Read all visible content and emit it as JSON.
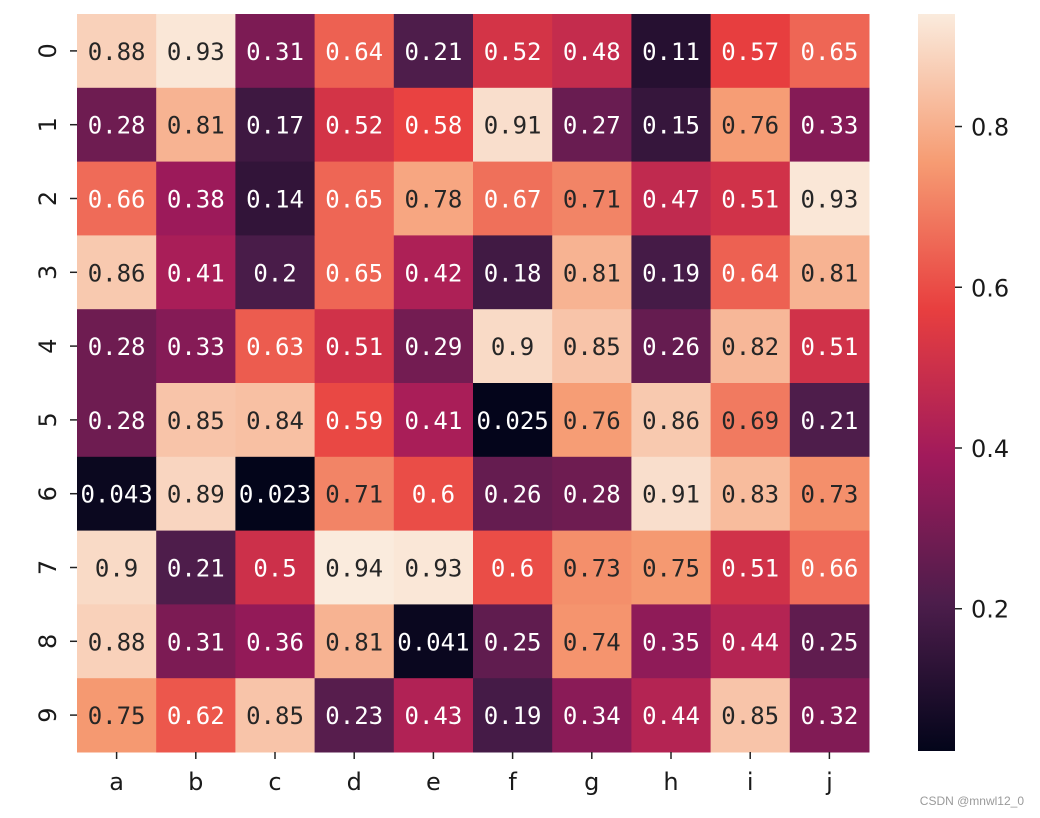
{
  "chart_data": {
    "type": "heatmap",
    "title": "",
    "xlabel": "",
    "ylabel": "",
    "x_categories": [
      "a",
      "b",
      "c",
      "d",
      "e",
      "f",
      "g",
      "h",
      "i",
      "j"
    ],
    "y_categories": [
      "0",
      "1",
      "2",
      "3",
      "4",
      "5",
      "6",
      "7",
      "8",
      "9"
    ],
    "values": [
      [
        0.88,
        0.93,
        0.31,
        0.64,
        0.21,
        0.52,
        0.48,
        0.11,
        0.57,
        0.65
      ],
      [
        0.28,
        0.81,
        0.17,
        0.52,
        0.58,
        0.91,
        0.27,
        0.15,
        0.76,
        0.33
      ],
      [
        0.66,
        0.38,
        0.14,
        0.65,
        0.78,
        0.67,
        0.71,
        0.47,
        0.51,
        0.93
      ],
      [
        0.86,
        0.41,
        0.2,
        0.65,
        0.42,
        0.18,
        0.81,
        0.19,
        0.64,
        0.81
      ],
      [
        0.28,
        0.33,
        0.63,
        0.51,
        0.29,
        0.9,
        0.85,
        0.26,
        0.82,
        0.51
      ],
      [
        0.28,
        0.85,
        0.84,
        0.59,
        0.41,
        0.025,
        0.76,
        0.86,
        0.69,
        0.21
      ],
      [
        0.043,
        0.89,
        0.023,
        0.71,
        0.6,
        0.26,
        0.28,
        0.91,
        0.83,
        0.73
      ],
      [
        0.9,
        0.21,
        0.5,
        0.94,
        0.93,
        0.6,
        0.73,
        0.75,
        0.51,
        0.66
      ],
      [
        0.88,
        0.31,
        0.36,
        0.81,
        0.041,
        0.25,
        0.74,
        0.35,
        0.44,
        0.25
      ],
      [
        0.75,
        0.62,
        0.85,
        0.23,
        0.43,
        0.19,
        0.34,
        0.44,
        0.85,
        0.32
      ]
    ],
    "colorbar": {
      "range": [
        0.023,
        0.94
      ],
      "ticks": [
        0.2,
        0.4,
        0.6,
        0.8
      ],
      "tick_labels": [
        "0.2",
        "0.4",
        "0.6",
        "0.8"
      ],
      "colormap": "rocket",
      "colormap_stops": [
        "#03051a",
        "#4c1d4b",
        "#a11a5b",
        "#e83f3f",
        "#f69c73",
        "#faebdd"
      ]
    },
    "legend": "colorbar-right",
    "grid": false
  },
  "watermark": "CSDN @mnwl12_0"
}
